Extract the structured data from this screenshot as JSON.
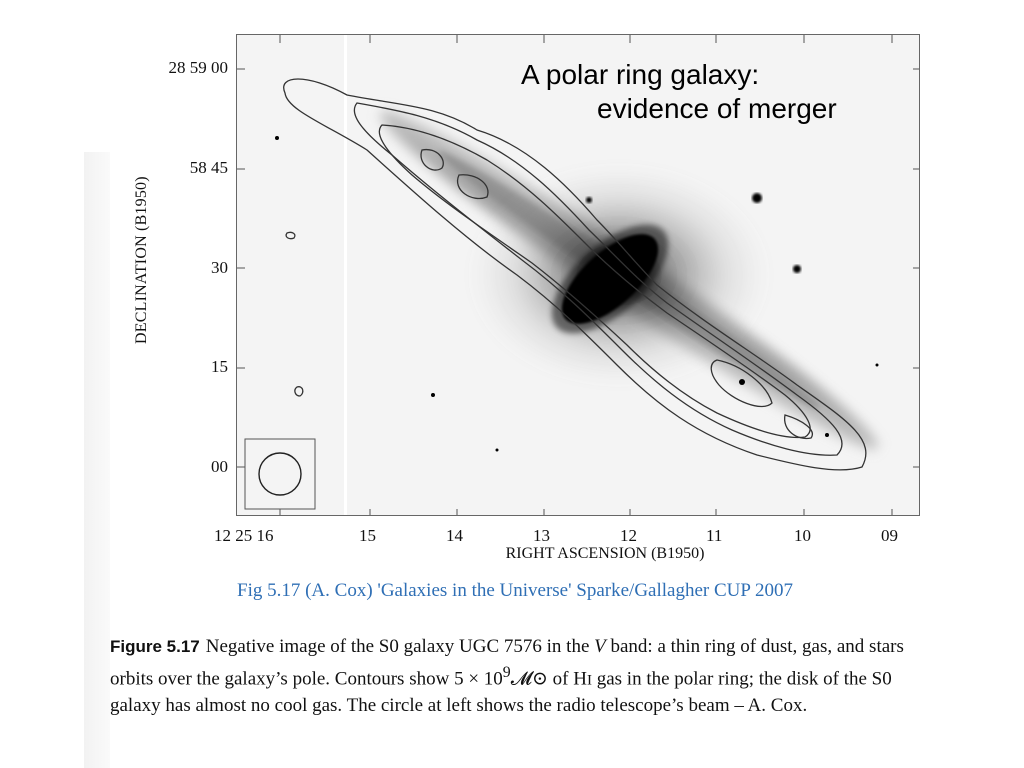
{
  "slide_title": {
    "line1": "A polar ring galaxy:",
    "line2": "evidence of merger"
  },
  "figure": {
    "y_axis_label": "DECLINATION (B1950)",
    "x_axis_label": "RIGHT ASCENSION (B1950)",
    "y_ticks": [
      "28 59 00",
      "58 45",
      "30",
      "15",
      "00"
    ],
    "x_ticks": [
      "12 25 16",
      "15",
      "14",
      "13",
      "12",
      "11",
      "10",
      "09"
    ]
  },
  "credit": "Fig 5.17 (A. Cox) 'Galaxies in the Universe' Sparke/Gallagher CUP 2007",
  "caption": {
    "label": "Figure 5.17",
    "text_1": "Negative image of the S0 galaxy UGC 7576 in the ",
    "band": "V",
    "text_2": " band: a thin ring of dust, gas, and stars orbits over the galaxy’s pole. Contours show 5 × 10",
    "exponent": "9",
    "solar_mass": "𝓜⊙",
    "text_3": " of H",
    "hi_suffix": "I",
    "text_4": " gas in the polar ring; the disk of the S0 galaxy has almost no cool gas. The circle at left shows the radio telescope’s beam – A. Cox."
  },
  "colors": {
    "credit": "#2f6fb5",
    "ink": "#111111",
    "plot_background": "#f4f4f4"
  }
}
